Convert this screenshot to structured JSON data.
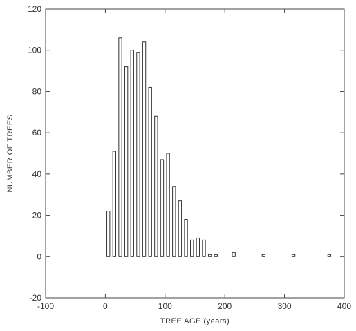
{
  "chart_data": {
    "type": "bar",
    "title": "",
    "xlabel": "TREE AGE (years)",
    "ylabel": "NUMBER OF TREES",
    "xlim": [
      -100,
      400
    ],
    "ylim": [
      -20,
      120
    ],
    "xticks": [
      "-100",
      "0",
      "100",
      "200",
      "300",
      "400"
    ],
    "yticks": [
      "-20",
      "0",
      "20",
      "40",
      "60",
      "80",
      "100",
      "120"
    ],
    "grid": false,
    "bar_color": "#333333",
    "x": [
      5,
      15,
      25,
      35,
      45,
      55,
      65,
      75,
      85,
      95,
      105,
      115,
      125,
      135,
      145,
      155,
      165,
      175,
      185,
      215,
      265,
      315,
      375
    ],
    "values": [
      22,
      51,
      106,
      92,
      100,
      99,
      104,
      82,
      68,
      47,
      50,
      34,
      27,
      18,
      8,
      9,
      8,
      1,
      1,
      2,
      1,
      1,
      1
    ]
  }
}
